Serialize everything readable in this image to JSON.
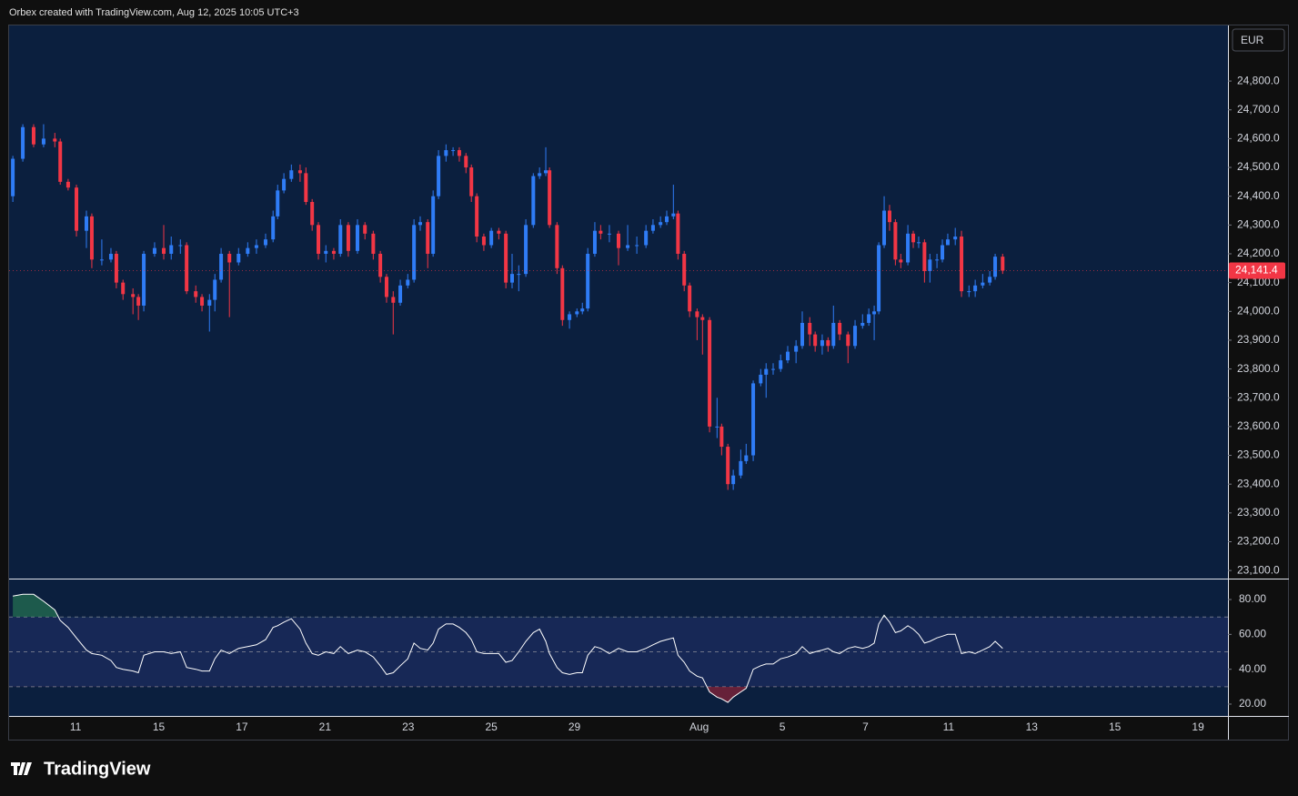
{
  "header": "Orbex created with TradingView.com, Aug 12, 2025 10:05 UTC+3",
  "currency": "EUR",
  "brand": "TradingView",
  "chart_data": [
    {
      "type": "candlestick",
      "up_color": "#2f7cf6",
      "down_color": "#f23645",
      "x": [
        -1.51,
        -1.27,
        -1.01,
        -0.77,
        -0.5,
        -0.37,
        -0.18,
        0.02,
        0.26,
        0.39,
        0.63,
        0.85,
        0.98,
        1.14,
        1.38,
        1.51,
        1.64,
        1.9,
        2.12,
        2.3,
        2.52,
        2.67,
        2.89,
        3.04,
        3.22,
        3.35,
        3.5,
        3.7,
        3.92,
        4.14,
        4.35,
        4.57,
        4.75,
        4.86,
        5.01,
        5.19,
        5.4,
        5.54,
        5.69,
        5.84,
        6.02,
        6.21,
        6.37,
        6.56,
        6.78,
        6.96,
        7.16,
        7.33,
        7.48,
        7.64,
        7.81,
        7.99,
        8.14,
        8.29,
        8.47,
        8.6,
        8.73,
        8.91,
        9.08,
        9.23,
        9.39,
        9.52,
        9.65,
        9.82,
        10.0,
        10.18,
        10.35,
        10.5,
        10.66,
        10.83,
        11.01,
        11.16,
        11.31,
        11.4,
        11.58,
        11.71,
        11.88,
        12.06,
        12.19,
        12.32,
        12.49,
        12.63,
        12.84,
        13.06,
        13.28,
        13.5,
        13.72,
        13.89,
        14.07,
        14.22,
        14.38,
        14.49,
        14.64,
        14.77,
        14.95,
        15.08,
        15.25,
        15.43,
        15.54,
        15.69,
        15.82,
        16.0,
        16.13,
        16.3,
        16.48,
        16.61,
        16.78,
        16.96,
        17.13,
        17.33,
        17.48,
        17.66,
        17.79,
        17.96,
        18.1,
        18.23,
        18.38,
        18.58,
        18.75,
        18.93,
        19.08,
        19.21,
        19.32,
        19.45,
        19.58,
        19.72,
        19.85,
        20.02,
        20.15,
        20.28,
        20.42,
        20.55,
        20.72,
        20.85,
        20.98,
        21.16,
        21.31,
        21.49,
        21.64,
        21.82,
        21.99,
        22.12,
        22.3
      ],
      "open": [
        24400,
        24530,
        24640,
        24580,
        24600,
        24590,
        24450,
        24430,
        24280,
        24330,
        24180,
        24180,
        24200,
        24100,
        24060,
        24050,
        24020,
        24200,
        24220,
        24200,
        24230,
        24230,
        24070,
        24050,
        24020,
        24040,
        24110,
        24200,
        24170,
        24200,
        24220,
        24230,
        24250,
        24330,
        24420,
        24460,
        24490,
        24480,
        24380,
        24300,
        24200,
        24210,
        24200,
        24300,
        24210,
        24300,
        24270,
        24200,
        24120,
        24050,
        24030,
        24090,
        24110,
        24300,
        24310,
        24200,
        24400,
        24540,
        24560,
        24560,
        24540,
        24500,
        24400,
        24260,
        24230,
        24280,
        24270,
        24100,
        24130,
        24130,
        24300,
        24470,
        24480,
        24490,
        24300,
        24150,
        23970,
        23990,
        24000,
        24010,
        24200,
        24280,
        24270,
        24270,
        24220,
        24230,
        24230,
        24280,
        24300,
        24310,
        24330,
        24340,
        24200,
        24090,
        24000,
        23980,
        23970,
        23600,
        23600,
        23530,
        23400,
        23430,
        23480,
        23500,
        23750,
        23780,
        23800,
        23800,
        23830,
        23860,
        23880,
        23960,
        23920,
        23880,
        23900,
        23880,
        23960,
        23920,
        23880,
        23950,
        23960,
        23990,
        24000,
        24230,
        24350,
        24310,
        24180,
        24170,
        24270,
        24240,
        24240,
        24140,
        24180,
        24180,
        24230,
        24250,
        24260,
        24070,
        24070,
        24090,
        24100,
        24120,
        24190
      ],
      "high": [
        24540,
        24650,
        24650,
        24650,
        24620,
        24600,
        24460,
        24440,
        24350,
        24340,
        24250,
        24220,
        24210,
        24110,
        24080,
        24060,
        24210,
        24240,
        24300,
        24260,
        24250,
        24240,
        24090,
        24060,
        24060,
        24130,
        24220,
        24210,
        24220,
        24240,
        24250,
        24270,
        24350,
        24440,
        24480,
        24510,
        24510,
        24500,
        24390,
        24310,
        24230,
        24220,
        24320,
        24310,
        24320,
        24310,
        24280,
        24210,
        24130,
        24070,
        24110,
        24130,
        24320,
        24330,
        24320,
        24420,
        24560,
        24580,
        24570,
        24570,
        24550,
        24510,
        24410,
        24270,
        24290,
        24290,
        24280,
        24200,
        24160,
        24320,
        24480,
        24500,
        24570,
        24500,
        24310,
        24160,
        24000,
        24010,
        24030,
        24220,
        24310,
        24300,
        24300,
        24280,
        24300,
        24260,
        24300,
        24320,
        24330,
        24350,
        24440,
        24350,
        24210,
        24100,
        24010,
        23990,
        23980,
        23700,
        23610,
        23540,
        23450,
        23520,
        23540,
        23760,
        23800,
        23820,
        23820,
        23850,
        23880,
        23900,
        24000,
        23980,
        23930,
        23920,
        23910,
        24020,
        23970,
        23930,
        23970,
        23990,
        24010,
        24020,
        24240,
        24400,
        24370,
        24320,
        24200,
        24300,
        24280,
        24260,
        24250,
        24200,
        24200,
        24250,
        24270,
        24290,
        24280,
        24090,
        24110,
        24130,
        24140,
        24200,
        24200
      ],
      "low": [
        24380,
        24520,
        24570,
        24570,
        24570,
        24440,
        24420,
        24260,
        24220,
        24150,
        24160,
        24170,
        24080,
        24040,
        23990,
        23970,
        24000,
        24190,
        24180,
        24180,
        24200,
        24060,
        24030,
        24000,
        23930,
        24000,
        24100,
        23980,
        24160,
        24190,
        24200,
        24220,
        24240,
        24320,
        24410,
        24450,
        24450,
        24370,
        24280,
        24180,
        24170,
        24180,
        24190,
        24190,
        24200,
        24250,
        24180,
        24100,
        24030,
        23920,
        24020,
        24080,
        24100,
        24280,
        24150,
        24190,
        24390,
        24520,
        24540,
        24520,
        24480,
        24380,
        24240,
        24210,
        24220,
        24250,
        24080,
        24080,
        24070,
        24120,
        24290,
        24460,
        24470,
        24290,
        24130,
        23950,
        23940,
        23980,
        23990,
        24000,
        24190,
        24250,
        24240,
        24160,
        24210,
        24200,
        24220,
        24270,
        24290,
        24300,
        24320,
        24180,
        24070,
        23980,
        23900,
        23850,
        23580,
        23560,
        23500,
        23380,
        23380,
        23420,
        23470,
        23480,
        23740,
        23700,
        23780,
        23790,
        23820,
        23820,
        23870,
        23880,
        23860,
        23850,
        23860,
        23870,
        23900,
        23820,
        23870,
        23940,
        23950,
        23900,
        23990,
        24220,
        24280,
        24160,
        24150,
        24160,
        24220,
        24220,
        24100,
        24100,
        24150,
        24170,
        24240,
        24230,
        24050,
        24050,
        24050,
        24080,
        24090,
        24110,
        24130
      ],
      "close": [
        24530,
        24640,
        24580,
        24600,
        24590,
        24450,
        24430,
        24280,
        24330,
        24180,
        24180,
        24200,
        24100,
        24060,
        24050,
        24020,
        24200,
        24220,
        24200,
        24230,
        24230,
        24070,
        24050,
        24020,
        24040,
        24110,
        24200,
        24170,
        24200,
        24220,
        24230,
        24250,
        24330,
        24420,
        24460,
        24490,
        24480,
        24380,
        24300,
        24200,
        24210,
        24200,
        24300,
        24210,
        24300,
        24270,
        24200,
        24120,
        24050,
        24030,
        24090,
        24110,
        24300,
        24310,
        24200,
        24400,
        24540,
        24560,
        24560,
        24540,
        24500,
        24400,
        24260,
        24230,
        24280,
        24270,
        24100,
        24130,
        24130,
        24300,
        24470,
        24480,
        24490,
        24300,
        24150,
        23970,
        23990,
        24000,
        24010,
        24200,
        24280,
        24270,
        24270,
        24220,
        24230,
        24230,
        24280,
        24300,
        24310,
        24330,
        24340,
        24200,
        24090,
        24000,
        23980,
        23970,
        23600,
        23600,
        23530,
        23400,
        23430,
        23480,
        23500,
        23750,
        23780,
        23800,
        23800,
        23830,
        23860,
        23880,
        23960,
        23920,
        23880,
        23900,
        23880,
        23960,
        23920,
        23880,
        23950,
        23960,
        23990,
        24000,
        24230,
        24350,
        24310,
        24180,
        24170,
        24270,
        24240,
        24240,
        24140,
        24180,
        24180,
        24230,
        24250,
        24260,
        24070,
        24070,
        24090,
        24100,
        24120,
        24190,
        24141.4
      ],
      "xlim": [
        -1.6,
        27.72
      ],
      "xticks": [
        {
          "value": 0,
          "label": "11"
        },
        {
          "value": 2,
          "label": "15"
        },
        {
          "value": 4,
          "label": "17"
        },
        {
          "value": 6,
          "label": "21"
        },
        {
          "value": 8,
          "label": "23"
        },
        {
          "value": 10,
          "label": "25"
        },
        {
          "value": 12,
          "label": "29"
        },
        {
          "value": 15,
          "label": "Aug"
        },
        {
          "value": 17,
          "label": "5"
        },
        {
          "value": 19,
          "label": "7"
        },
        {
          "value": 21,
          "label": "11"
        },
        {
          "value": 23,
          "label": "13"
        },
        {
          "value": 25,
          "label": "15"
        },
        {
          "value": 27,
          "label": "19"
        }
      ],
      "ylim": [
        23072,
        24993
      ],
      "yticks": [
        {
          "value": 23100,
          "label": "23,100.0"
        },
        {
          "value": 23200,
          "label": "23,200.0"
        },
        {
          "value": 23300,
          "label": "23,300.0"
        },
        {
          "value": 23400,
          "label": "23,400.0"
        },
        {
          "value": 23500,
          "label": "23,500.0"
        },
        {
          "value": 23600,
          "label": "23,600.0"
        },
        {
          "value": 23700,
          "label": "23,700.0"
        },
        {
          "value": 23800,
          "label": "23,800.0"
        },
        {
          "value": 23900,
          "label": "23,900.0"
        },
        {
          "value": 24000,
          "label": "24,000.0"
        },
        {
          "value": 24100,
          "label": "24,100.0"
        },
        {
          "value": 24200,
          "label": "24,200.0"
        },
        {
          "value": 24300,
          "label": "24,300.0"
        },
        {
          "value": 24400,
          "label": "24,400.0"
        },
        {
          "value": 24500,
          "label": "24,500.0"
        },
        {
          "value": 24600,
          "label": "24,600.0"
        },
        {
          "value": 24700,
          "label": "24,700.0"
        },
        {
          "value": 24800,
          "label": "24,800.0"
        }
      ],
      "last_price": {
        "value": 24141.4,
        "label": "24,141.4"
      }
    },
    {
      "type": "line",
      "color": "#ffffff",
      "x": [
        -1.51,
        -1.27,
        -1.01,
        -0.77,
        -0.5,
        -0.37,
        -0.18,
        0.02,
        0.26,
        0.39,
        0.63,
        0.85,
        0.98,
        1.14,
        1.38,
        1.51,
        1.64,
        1.9,
        2.12,
        2.3,
        2.52,
        2.67,
        2.89,
        3.04,
        3.22,
        3.35,
        3.5,
        3.7,
        3.92,
        4.14,
        4.35,
        4.57,
        4.75,
        4.86,
        5.01,
        5.19,
        5.4,
        5.54,
        5.69,
        5.84,
        6.02,
        6.21,
        6.37,
        6.56,
        6.78,
        6.96,
        7.16,
        7.33,
        7.48,
        7.64,
        7.81,
        7.99,
        8.14,
        8.29,
        8.47,
        8.6,
        8.73,
        8.91,
        9.08,
        9.23,
        9.39,
        9.52,
        9.65,
        9.82,
        10.0,
        10.18,
        10.35,
        10.5,
        10.66,
        10.83,
        11.01,
        11.16,
        11.31,
        11.4,
        11.58,
        11.71,
        11.88,
        12.06,
        12.19,
        12.32,
        12.49,
        12.63,
        12.84,
        13.06,
        13.28,
        13.5,
        13.72,
        13.89,
        14.07,
        14.22,
        14.38,
        14.49,
        14.64,
        14.77,
        14.95,
        15.08,
        15.25,
        15.43,
        15.54,
        15.69,
        15.82,
        16.0,
        16.13,
        16.3,
        16.48,
        16.61,
        16.78,
        16.96,
        17.13,
        17.33,
        17.48,
        17.66,
        17.79,
        17.96,
        18.1,
        18.23,
        18.38,
        18.58,
        18.75,
        18.93,
        19.08,
        19.21,
        19.32,
        19.45,
        19.58,
        19.72,
        19.85,
        20.02,
        20.15,
        20.28,
        20.42,
        20.55,
        20.72,
        20.85,
        20.98,
        21.16,
        21.31,
        21.49,
        21.64,
        21.82,
        21.99,
        22.12,
        22.3
      ],
      "values": [
        82,
        83,
        83,
        79,
        74,
        68,
        64,
        58,
        51,
        49,
        48,
        45,
        41,
        40,
        39,
        38,
        48,
        50,
        50,
        49,
        50,
        41,
        40,
        39,
        39,
        46,
        51,
        49,
        52,
        53,
        54,
        57,
        64,
        65,
        67,
        69,
        63,
        55,
        49,
        48,
        50,
        49,
        53,
        49,
        51,
        50,
        47,
        42,
        37,
        38,
        42,
        46,
        55,
        52,
        51,
        55,
        63,
        66,
        66,
        64,
        61,
        57,
        50,
        49,
        49,
        49,
        44,
        45,
        50,
        56,
        61,
        63,
        56,
        49,
        41,
        38,
        37,
        38,
        38,
        48,
        53,
        52,
        49,
        52,
        50,
        50,
        52,
        54,
        56,
        57,
        58,
        48,
        44,
        39,
        36,
        35,
        27,
        24,
        23,
        21,
        24,
        27,
        29,
        40,
        42,
        43,
        43,
        46,
        47,
        49,
        53,
        49,
        50,
        51,
        52,
        50,
        49,
        52,
        53,
        52,
        53,
        55,
        66,
        71,
        67,
        61,
        62,
        65,
        63,
        60,
        55,
        56,
        58,
        59,
        60,
        60,
        49,
        50,
        49,
        51,
        53,
        56,
        52
      ],
      "ylim": [
        13.2,
        91.5
      ],
      "yticks": [
        {
          "value": 20,
          "label": "20.00"
        },
        {
          "value": 40,
          "label": "40.00"
        },
        {
          "value": 60,
          "label": "60.00"
        },
        {
          "value": 80,
          "label": "80.00"
        }
      ],
      "levels": [
        30,
        50,
        70
      ]
    }
  ]
}
